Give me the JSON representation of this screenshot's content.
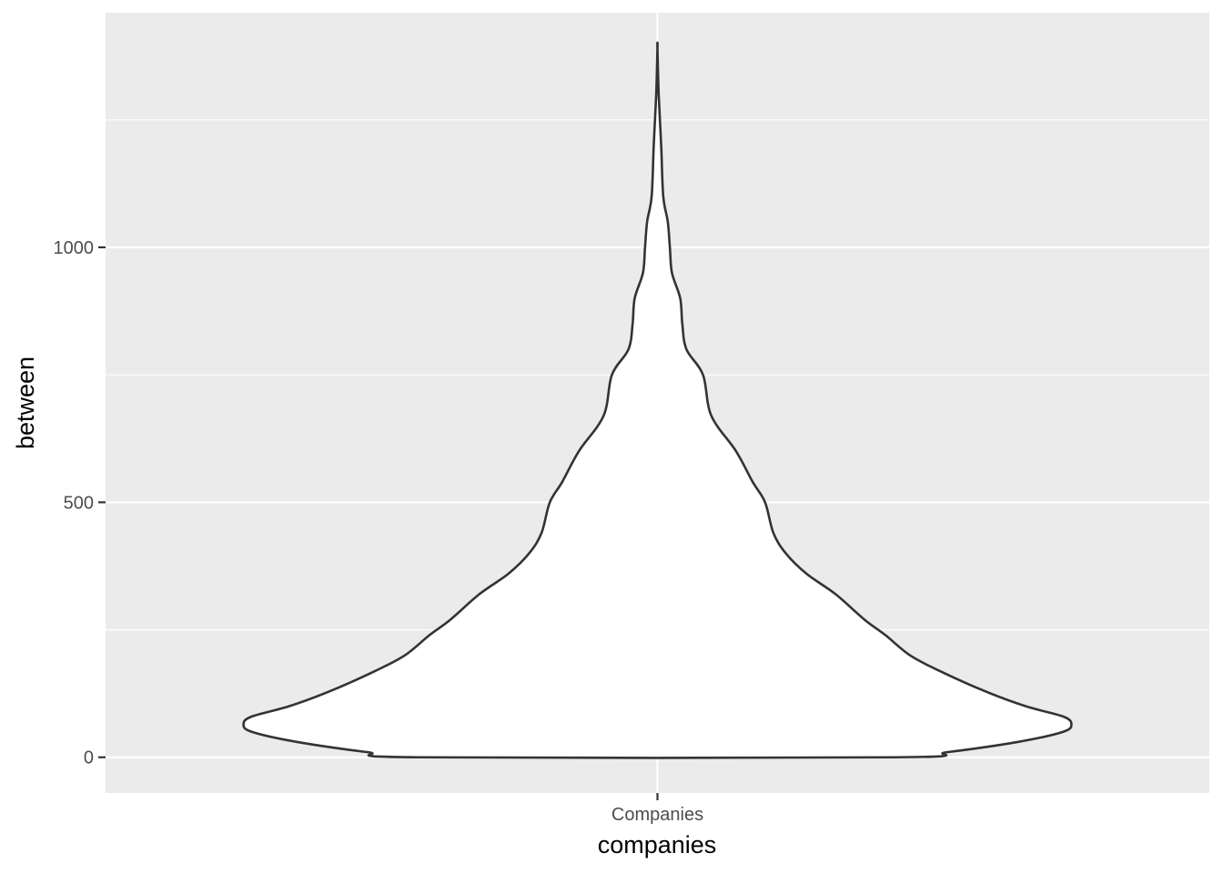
{
  "chart_data": {
    "type": "violin",
    "xlabel": "companies",
    "ylabel": "between",
    "categories": [
      "Companies"
    ],
    "ylim": [
      -70,
      1460
    ],
    "y_ticks": [
      0,
      500,
      1000
    ],
    "y_tick_labels": [
      "0",
      "500",
      "1000"
    ],
    "grid": true,
    "background": "#ebebeb",
    "fill_color": "#ffffff",
    "outline_color": "#333333",
    "violins": [
      {
        "category": "Companies",
        "relative_width": 0.75,
        "density_profile": [
          {
            "y": 0,
            "width": 0.574
          },
          {
            "y": 10,
            "width": 0.7
          },
          {
            "y": 30,
            "width": 0.87
          },
          {
            "y": 50,
            "width": 0.98
          },
          {
            "y": 65,
            "width": 1.0
          },
          {
            "y": 80,
            "width": 0.98
          },
          {
            "y": 100,
            "width": 0.89
          },
          {
            "y": 130,
            "width": 0.79
          },
          {
            "y": 170,
            "width": 0.68
          },
          {
            "y": 200,
            "width": 0.61
          },
          {
            "y": 240,
            "width": 0.55
          },
          {
            "y": 270,
            "width": 0.5
          },
          {
            "y": 320,
            "width": 0.43
          },
          {
            "y": 360,
            "width": 0.36
          },
          {
            "y": 400,
            "width": 0.31
          },
          {
            "y": 440,
            "width": 0.28
          },
          {
            "y": 500,
            "width": 0.26
          },
          {
            "y": 540,
            "width": 0.23
          },
          {
            "y": 600,
            "width": 0.19
          },
          {
            "y": 670,
            "width": 0.13
          },
          {
            "y": 750,
            "width": 0.11
          },
          {
            "y": 800,
            "width": 0.07
          },
          {
            "y": 850,
            "width": 0.06
          },
          {
            "y": 900,
            "width": 0.055
          },
          {
            "y": 950,
            "width": 0.035
          },
          {
            "y": 1000,
            "width": 0.03
          },
          {
            "y": 1050,
            "width": 0.025
          },
          {
            "y": 1100,
            "width": 0.014
          },
          {
            "y": 1200,
            "width": 0.009
          },
          {
            "y": 1300,
            "width": 0.003
          },
          {
            "y": 1390,
            "width": 0.0
          }
        ]
      }
    ]
  }
}
